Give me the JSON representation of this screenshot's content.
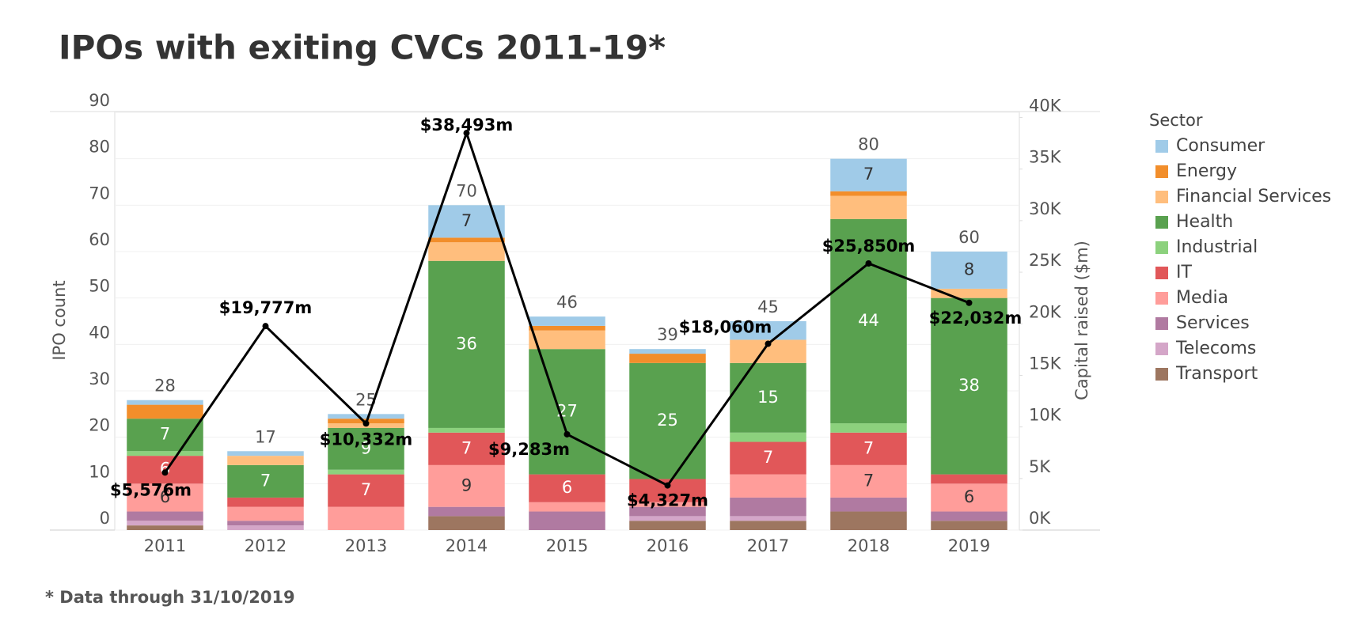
{
  "chart_data": {
    "type": "stacked-bar-line",
    "title": "IPOs with exiting CVCs 2011-19*",
    "footnote": "* Data through 31/10/2019",
    "y_label": "IPO count",
    "y2_label": "Capital raised ($m)",
    "legend_title": "Sector",
    "categories": [
      "2011",
      "2012",
      "2013",
      "2014",
      "2015",
      "2016",
      "2017",
      "2018",
      "2019"
    ],
    "ylim": [
      0,
      90
    ],
    "yticks": [
      0,
      10,
      20,
      30,
      40,
      50,
      60,
      70,
      80,
      90
    ],
    "y2lim": [
      0,
      40500
    ],
    "y2ticks": [
      {
        "value": 0,
        "label": "0K"
      },
      {
        "value": 5000,
        "label": "5K"
      },
      {
        "value": 10000,
        "label": "10K"
      },
      {
        "value": 15000,
        "label": "15K"
      },
      {
        "value": 20000,
        "label": "20K"
      },
      {
        "value": 25000,
        "label": "25K"
      },
      {
        "value": 30000,
        "label": "30K"
      },
      {
        "value": 35000,
        "label": "35K"
      },
      {
        "value": 40000,
        "label": "40K"
      }
    ],
    "segment_label_min": 6,
    "series": [
      {
        "name": "Transport",
        "color": "#9d7660",
        "label_color": "#333333",
        "values": [
          1,
          0,
          0,
          3,
          0,
          2,
          2,
          4,
          2
        ]
      },
      {
        "name": "Telecoms",
        "color": "#d4a6c8",
        "label_color": "#333333",
        "values": [
          1,
          1,
          0,
          0,
          0,
          1,
          1,
          0,
          0
        ]
      },
      {
        "name": "Services",
        "color": "#b07aa1",
        "label_color": "#333333",
        "values": [
          2,
          1,
          0,
          2,
          4,
          2,
          4,
          3,
          2
        ]
      },
      {
        "name": "Media",
        "color": "#ff9d9a",
        "label_color": "#333333",
        "values": [
          6,
          3,
          5,
          9,
          2,
          1,
          5,
          7,
          6
        ]
      },
      {
        "name": "IT",
        "color": "#e15759",
        "label_color": "#ffffff",
        "values": [
          6,
          2,
          7,
          7,
          6,
          5,
          7,
          7,
          2
        ]
      },
      {
        "name": "Industrial",
        "color": "#8cd17d",
        "label_color": "#333333",
        "values": [
          1,
          0,
          1,
          1,
          0,
          0,
          2,
          2,
          0
        ]
      },
      {
        "name": "Health",
        "color": "#59a14f",
        "label_color": "#ffffff",
        "values": [
          7,
          7,
          9,
          36,
          27,
          25,
          15,
          44,
          38
        ]
      },
      {
        "name": "Financial Services",
        "color": "#ffbe7d",
        "label_color": "#333333",
        "values": [
          0,
          2,
          1,
          4,
          4,
          0,
          5,
          5,
          2
        ]
      },
      {
        "name": "Energy",
        "color": "#f28e2b",
        "label_color": "#333333",
        "values": [
          3,
          0,
          1,
          1,
          1,
          2,
          0,
          1,
          0
        ]
      },
      {
        "name": "Consumer",
        "color": "#a0cbe8",
        "label_color": "#333333",
        "values": [
          1,
          1,
          1,
          7,
          2,
          1,
          4,
          7,
          8
        ]
      }
    ],
    "totals": [
      28,
      17,
      25,
      70,
      46,
      39,
      45,
      80,
      60
    ],
    "line": {
      "color": "#000000",
      "axis": "y2",
      "values": [
        5576,
        19777,
        10332,
        38493,
        9283,
        4327,
        18060,
        25850,
        22032
      ],
      "value_labels": [
        "$5,576m",
        "$19,777m",
        "$10,332m",
        "$38,493m",
        "$9,283m",
        "$4,327m",
        "$18,060m",
        "$25,850m",
        "$22,032m"
      ]
    }
  }
}
